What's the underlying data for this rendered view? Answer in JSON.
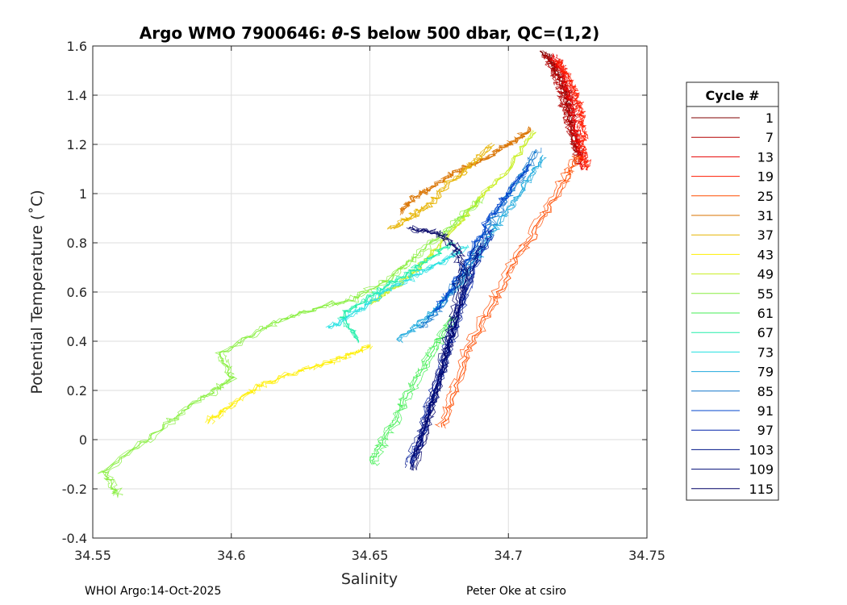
{
  "chart_data": {
    "type": "line",
    "title": "Argo WMO 7900646: θ-S below 500 dbar,  QC=(1,2)",
    "title_parts": [
      "Argo WMO 7900646: ",
      "θ",
      "-S below 500 dbar,  QC=(1,2)"
    ],
    "xlabel": "Salinity",
    "ylabel": "Potential Temperature (˚C)",
    "xlim": [
      34.55,
      34.75
    ],
    "ylim": [
      -0.4,
      1.6
    ],
    "xticks": [
      34.55,
      34.6,
      34.65,
      34.7,
      34.75
    ],
    "xtick_labels": [
      "34.55",
      "34.6",
      "34.65",
      "34.7",
      "34.75"
    ],
    "yticks": [
      -0.4,
      -0.2,
      0,
      0.2,
      0.4,
      0.6,
      0.8,
      1,
      1.2,
      1.4,
      1.6
    ],
    "ytick_labels": [
      "-0.4",
      "-0.2",
      "0",
      "0.2",
      "0.4",
      "0.6",
      "0.8",
      "1",
      "1.2",
      "1.4",
      "1.6"
    ],
    "grid": true,
    "legend": {
      "title": "Cycle #",
      "placement": "outside-right",
      "entries": [
        {
          "label": "1",
          "color": "#800000"
        },
        {
          "label": "7",
          "color": "#b30000"
        },
        {
          "label": "13",
          "color": "#e60000"
        },
        {
          "label": "19",
          "color": "#ff1a00"
        },
        {
          "label": "25",
          "color": "#ff4d00"
        },
        {
          "label": "31",
          "color": "#d97300"
        },
        {
          "label": "37",
          "color": "#e6b300"
        },
        {
          "label": "43",
          "color": "#ffee00"
        },
        {
          "label": "49",
          "color": "#c8ee20"
        },
        {
          "label": "55",
          "color": "#88ee40"
        },
        {
          "label": "61",
          "color": "#44ee55"
        },
        {
          "label": "67",
          "color": "#22eeaa"
        },
        {
          "label": "73",
          "color": "#22e0e0"
        },
        {
          "label": "79",
          "color": "#20aadd"
        },
        {
          "label": "85",
          "color": "#1177cc"
        },
        {
          "label": "91",
          "color": "#0044cc"
        },
        {
          "label": "97",
          "color": "#0022aa"
        },
        {
          "label": "103",
          "color": "#001488"
        },
        {
          "label": "109",
          "color": "#000c77"
        },
        {
          "label": "115",
          "color": "#000066"
        }
      ]
    },
    "series": [
      {
        "name": "1",
        "color": "#800000",
        "salinity": [
          34.712,
          34.716,
          34.719,
          34.721,
          34.722,
          34.723,
          34.725
        ],
        "theta": [
          1.58,
          1.52,
          1.46,
          1.4,
          1.33,
          1.25,
          1.16
        ]
      },
      {
        "name": "7",
        "color": "#b30000",
        "salinity": [
          34.714,
          34.717,
          34.719,
          34.72,
          34.722,
          34.724,
          34.726
        ],
        "theta": [
          1.57,
          1.5,
          1.44,
          1.38,
          1.3,
          1.22,
          1.12
        ]
      },
      {
        "name": "13",
        "color": "#e60000",
        "salinity": [
          34.716,
          34.719,
          34.721,
          34.723,
          34.724,
          34.725,
          34.727
        ],
        "theta": [
          1.56,
          1.5,
          1.43,
          1.36,
          1.28,
          1.2,
          1.1
        ]
      },
      {
        "name": "19",
        "color": "#ff1a00",
        "salinity": [
          34.718,
          34.721,
          34.724,
          34.726,
          34.727,
          34.727,
          34.728
        ],
        "theta": [
          1.54,
          1.48,
          1.41,
          1.34,
          1.26,
          1.18,
          1.1
        ]
      },
      {
        "name": "25",
        "color": "#ff4d00",
        "salinity": [
          34.725,
          34.72,
          34.712,
          34.702,
          34.694,
          34.686,
          34.68,
          34.676
        ],
        "theta": [
          1.15,
          1.05,
          0.9,
          0.72,
          0.55,
          0.38,
          0.2,
          0.05
        ]
      },
      {
        "name": "31",
        "color": "#d97300",
        "salinity": [
          34.661,
          34.666,
          34.672,
          34.68,
          34.69,
          34.698,
          34.704,
          34.708
        ],
        "theta": [
          0.92,
          0.98,
          1.02,
          1.08,
          1.13,
          1.18,
          1.22,
          1.26
        ]
      },
      {
        "name": "37",
        "color": "#e6b300",
        "salinity": [
          34.659,
          34.665,
          34.672,
          34.68,
          34.688,
          34.695
        ],
        "theta": [
          0.86,
          0.9,
          0.95,
          1.05,
          1.12,
          1.2
        ]
      },
      {
        "name": "43",
        "color": "#ffee00",
        "salinity": [
          34.591,
          34.6,
          34.61,
          34.625,
          34.64,
          34.65
        ],
        "theta": [
          0.07,
          0.14,
          0.22,
          0.28,
          0.33,
          0.38
        ]
      },
      {
        "name": "49",
        "color": "#c8ee20",
        "salinity": [
          34.65,
          34.66,
          34.67,
          34.68,
          34.69,
          34.7,
          34.71
        ],
        "theta": [
          0.55,
          0.62,
          0.72,
          0.85,
          0.98,
          1.1,
          1.25
        ]
      },
      {
        "name": "55",
        "color": "#88ee40",
        "salinity": [
          34.559,
          34.554,
          34.575,
          34.591,
          34.6,
          34.596,
          34.611,
          34.626,
          34.646,
          34.66,
          34.67,
          34.68,
          34.69
        ],
        "theta": [
          -0.23,
          -0.13,
          0.05,
          0.18,
          0.25,
          0.35,
          0.45,
          0.52,
          0.58,
          0.68,
          0.78,
          0.88,
          0.98
        ]
      },
      {
        "name": "61",
        "color": "#44ee55",
        "salinity": [
          34.651,
          34.655,
          34.66,
          34.665,
          34.67,
          34.675,
          34.68
        ],
        "theta": [
          -0.1,
          0.0,
          0.1,
          0.2,
          0.3,
          0.4,
          0.5
        ]
      },
      {
        "name": "67",
        "color": "#22eeaa",
        "salinity": [
          34.646,
          34.64,
          34.65,
          34.66,
          34.67,
          34.68
        ],
        "theta": [
          0.4,
          0.5,
          0.58,
          0.65,
          0.72,
          0.8
        ]
      },
      {
        "name": "73",
        "color": "#22e0e0",
        "salinity": [
          34.635,
          34.645,
          34.655,
          34.665,
          34.675,
          34.685
        ],
        "theta": [
          0.45,
          0.52,
          0.6,
          0.66,
          0.72,
          0.78
        ]
      },
      {
        "name": "79",
        "color": "#20aadd",
        "salinity": [
          34.66,
          34.668,
          34.676,
          34.684,
          34.69,
          34.697,
          34.705,
          34.712
        ],
        "theta": [
          0.4,
          0.48,
          0.56,
          0.66,
          0.78,
          0.9,
          1.02,
          1.15
        ]
      },
      {
        "name": "85",
        "color": "#1177cc",
        "salinity": [
          34.668,
          34.676,
          34.682,
          34.688,
          34.695,
          34.703,
          34.71
        ],
        "theta": [
          0.45,
          0.55,
          0.65,
          0.78,
          0.92,
          1.05,
          1.18
        ]
      },
      {
        "name": "91",
        "color": "#0044cc",
        "salinity": [
          34.674,
          34.68,
          34.686,
          34.692,
          34.7,
          34.708
        ],
        "theta": [
          0.52,
          0.62,
          0.74,
          0.88,
          1.0,
          1.12
        ]
      },
      {
        "name": "97",
        "color": "#0022aa",
        "salinity": [
          34.665,
          34.671,
          34.676,
          34.682,
          34.688,
          34.694
        ],
        "theta": [
          -0.1,
          0.1,
          0.3,
          0.5,
          0.7,
          0.85
        ]
      },
      {
        "name": "103",
        "color": "#001488",
        "salinity": [
          34.664,
          34.67,
          34.676,
          34.681,
          34.686,
          34.69
        ],
        "theta": [
          -0.12,
          0.08,
          0.28,
          0.48,
          0.66,
          0.8
        ]
      },
      {
        "name": "109",
        "color": "#000c77",
        "salinity": [
          34.666,
          34.672,
          34.677,
          34.682,
          34.686
        ],
        "theta": [
          -0.08,
          0.12,
          0.32,
          0.52,
          0.7
        ]
      },
      {
        "name": "115",
        "color": "#000066",
        "salinity": [
          34.665,
          34.671,
          34.676,
          34.68,
          34.683,
          34.681,
          34.674,
          34.664
        ],
        "theta": [
          -0.12,
          0.1,
          0.3,
          0.5,
          0.68,
          0.78,
          0.84,
          0.86
        ]
      }
    ]
  },
  "footer": {
    "left": "WHOI Argo:14-Oct-2025",
    "right": "Peter Oke at csiro"
  }
}
